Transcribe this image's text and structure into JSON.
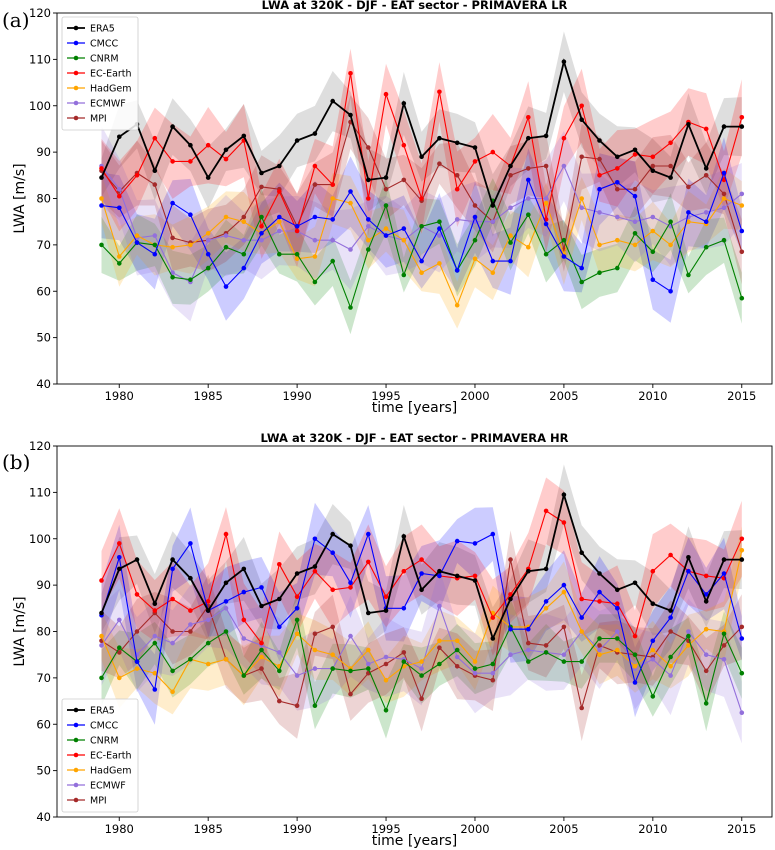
{
  "panel_labels": [
    "(a)",
    "(b)"
  ],
  "chart_data": [
    {
      "type": "line",
      "title": "LWA at 320K - DJF - EAT sector - PRIMAVERA LR",
      "xlabel": "time [years]",
      "ylabel": "LWA [m/s]",
      "xlim": [
        1976.5,
        2016.7
      ],
      "ylim": [
        40,
        120
      ],
      "xticks": [
        1980,
        1985,
        1990,
        1995,
        2000,
        2005,
        2010,
        2015
      ],
      "yticks": [
        40,
        50,
        60,
        70,
        80,
        90,
        100,
        110,
        120
      ],
      "legend_position": "top-left",
      "grid": false,
      "x": [
        1979,
        1980,
        1981,
        1982,
        1983,
        1984,
        1985,
        1986,
        1987,
        1988,
        1989,
        1990,
        1991,
        1992,
        1993,
        1994,
        1995,
        1996,
        1997,
        1998,
        1999,
        2000,
        2001,
        2002,
        2003,
        2004,
        2005,
        2006,
        2007,
        2008,
        2009,
        2010,
        2011,
        2012,
        2013,
        2014,
        2015
      ],
      "series": [
        {
          "name": "ERA5",
          "color": "#000000",
          "values": [
            84.5,
            93.3,
            96,
            86,
            95.5,
            91.5,
            84.5,
            90.5,
            93.5,
            85.5,
            87,
            92.5,
            94,
            101,
            98,
            84,
            84.5,
            100.5,
            89,
            93,
            92,
            91,
            78.5,
            87,
            93,
            93.5,
            109.5,
            97,
            92.5,
            89,
            90.5,
            86,
            84.5,
            96,
            86.5,
            95.5,
            95.5
          ]
        },
        {
          "name": "CMCC",
          "color": "#0000ff",
          "values": [
            78.5,
            78,
            70.5,
            68,
            79,
            76.5,
            68,
            61,
            65,
            72.5,
            76,
            74,
            76,
            75.5,
            81.5,
            75.5,
            72,
            73.5,
            66.5,
            73.5,
            64.5,
            76,
            66.5,
            66.5,
            84,
            74.5,
            67.5,
            65,
            82,
            83.5,
            80.5,
            62.5,
            60,
            77,
            75,
            85.5,
            73
          ]
        },
        {
          "name": "CNRM",
          "color": "#008000",
          "values": [
            70,
            66,
            70.5,
            70,
            63,
            62.5,
            65,
            69.5,
            68,
            76,
            68,
            68,
            62,
            66.5,
            56.5,
            69,
            78.5,
            63.5,
            74,
            75,
            64.5,
            71,
            79.5,
            70.5,
            76.5,
            68,
            71,
            62,
            64,
            65,
            72.5,
            68.5,
            75,
            63.5,
            69.5,
            71,
            58.5
          ]
        },
        {
          "name": "EC-Earth",
          "color": "#ff0000",
          "values": [
            86.5,
            80.5,
            85,
            93,
            88,
            88,
            91.5,
            88.5,
            92.5,
            74,
            81.5,
            73,
            87,
            83,
            107,
            80,
            102.5,
            91.5,
            80,
            103,
            82,
            88,
            90,
            87,
            97.5,
            75.5,
            93,
            100,
            85,
            86.5,
            89.5,
            89,
            92,
            96.5,
            95,
            84,
            97.5
          ]
        },
        {
          "name": "HadGem",
          "color": "#ffa500",
          "values": [
            80,
            67.5,
            72,
            70,
            69.5,
            70,
            72.5,
            76,
            75,
            72.5,
            75,
            67,
            67.5,
            80,
            79,
            71,
            73.5,
            71,
            64,
            66,
            57,
            67,
            64,
            72,
            69.5,
            79,
            68,
            80,
            70,
            71,
            70,
            73,
            70,
            75,
            74.5,
            80,
            78.5
          ]
        },
        {
          "name": "ECMWF",
          "color": "#9370db",
          "values": [
            87,
            82,
            71.5,
            72,
            64,
            62,
            71,
            72,
            71,
            71,
            73,
            73,
            71,
            71,
            69,
            74,
            72,
            71,
            74,
            72,
            75.5,
            75,
            75,
            78,
            80,
            80,
            87,
            78,
            77,
            76,
            75,
            76,
            74,
            76,
            77,
            78,
            81
          ]
        },
        {
          "name": "MPI",
          "color": "#a52a2a",
          "values": [
            86,
            81.5,
            85.5,
            83,
            71.5,
            70.5,
            71,
            72.5,
            76,
            82.5,
            82,
            74,
            83,
            83,
            96.5,
            91,
            82,
            84,
            79.5,
            87.5,
            85,
            78.5,
            75,
            85,
            86.5,
            87,
            69,
            89,
            88.5,
            82,
            82,
            87,
            87,
            82.5,
            85,
            81,
            68.5
          ]
        }
      ]
    },
    {
      "type": "line",
      "title": "LWA at 320K - DJF - EAT sector - PRIMAVERA HR",
      "xlabel": "time [years]",
      "ylabel": "LWA [m/s]",
      "xlim": [
        1976.5,
        2016.7
      ],
      "ylim": [
        40,
        120
      ],
      "xticks": [
        1980,
        1985,
        1990,
        1995,
        2000,
        2005,
        2010,
        2015
      ],
      "yticks": [
        40,
        50,
        60,
        70,
        80,
        90,
        100,
        110,
        120
      ],
      "legend_position": "bottom-left",
      "grid": false,
      "x": [
        1979,
        1980,
        1981,
        1982,
        1983,
        1984,
        1985,
        1986,
        1987,
        1988,
        1989,
        1990,
        1991,
        1992,
        1993,
        1994,
        1995,
        1996,
        1997,
        1998,
        1999,
        2000,
        2001,
        2002,
        2003,
        2004,
        2005,
        2006,
        2007,
        2008,
        2009,
        2010,
        2011,
        2012,
        2013,
        2014,
        2015
      ],
      "series": [
        {
          "name": "ERA5",
          "color": "#000000",
          "values": [
            84,
            93.5,
            95.5,
            86,
            95.5,
            91.5,
            84.5,
            90.5,
            93.5,
            85.5,
            87,
            92.5,
            94,
            101,
            98.5,
            84,
            84.5,
            100.5,
            89,
            93,
            92,
            91,
            78.5,
            87,
            93,
            93.5,
            109.5,
            97,
            92.5,
            89,
            90.5,
            86,
            84.5,
            96,
            86.5,
            95.5,
            95.5
          ]
        },
        {
          "name": "CMCC",
          "color": "#0000ff",
          "values": [
            83.5,
            96,
            73.5,
            67.5,
            93.5,
            99,
            84.5,
            86.5,
            88.5,
            89.5,
            81,
            85,
            100,
            97,
            90.5,
            101,
            85,
            85,
            92.5,
            92,
            99.5,
            99,
            101,
            80.5,
            80.5,
            86.5,
            90,
            83,
            88.5,
            85,
            69,
            78,
            83,
            93,
            88,
            92.5,
            78.5
          ]
        },
        {
          "name": "CNRM",
          "color": "#008000",
          "values": [
            70,
            76.5,
            73.5,
            77.5,
            71.5,
            74,
            77.5,
            80,
            70.5,
            76,
            71.5,
            82.5,
            64,
            72,
            71.5,
            72,
            63,
            73.5,
            70.5,
            73,
            76,
            72,
            73,
            81,
            73.5,
            75.5,
            73.5,
            73.5,
            78.5,
            78.5,
            75,
            66,
            74.5,
            79,
            64.5,
            79.5,
            71
          ]
        },
        {
          "name": "EC-Earth",
          "color": "#ff0000",
          "values": [
            91,
            99,
            88,
            84.5,
            87,
            84.5,
            86.5,
            101,
            82.5,
            77.5,
            94.5,
            87.5,
            93,
            89,
            89.5,
            95,
            87.5,
            93,
            95.5,
            92,
            91.5,
            92,
            83,
            88,
            93.5,
            106,
            103.5,
            87,
            86.5,
            86,
            79,
            93,
            96.5,
            93,
            92,
            91.5,
            100
          ]
        },
        {
          "name": "HadGem",
          "color": "#ffa500",
          "values": [
            79,
            70,
            72,
            71,
            67,
            74,
            73,
            74,
            70.5,
            74.5,
            72.5,
            79.5,
            76,
            75,
            72,
            76,
            69.5,
            72.5,
            73.5,
            78,
            78,
            73.5,
            84,
            81,
            81,
            85,
            88.5,
            80,
            75,
            76,
            72.5,
            76,
            72.5,
            77,
            80.5,
            80,
            97.5
          ]
        },
        {
          "name": "ECMWF",
          "color": "#9370db",
          "values": [
            77,
            82.5,
            75,
            79,
            77.5,
            81.5,
            82.5,
            85,
            78.5,
            77,
            75.5,
            70.5,
            72,
            72,
            79,
            73,
            74.5,
            74,
            72,
            85.5,
            74.5,
            71,
            71,
            75,
            76,
            75.5,
            75,
            80,
            76,
            80,
            72,
            74,
            70.5,
            80,
            75,
            74,
            62.5
          ]
        },
        {
          "name": "MPI",
          "color": "#a52a2a",
          "values": [
            78,
            75.5,
            80,
            84,
            80,
            80,
            85.5,
            74,
            70.5,
            72,
            65,
            64,
            79.5,
            81,
            66.5,
            71,
            73,
            75.5,
            65.5,
            76.5,
            72.5,
            70.5,
            69.5,
            95.5,
            77.5,
            77,
            81,
            63.5,
            77,
            75.5,
            75,
            74.5,
            80,
            78,
            71.5,
            77,
            81
          ]
        }
      ]
    }
  ]
}
